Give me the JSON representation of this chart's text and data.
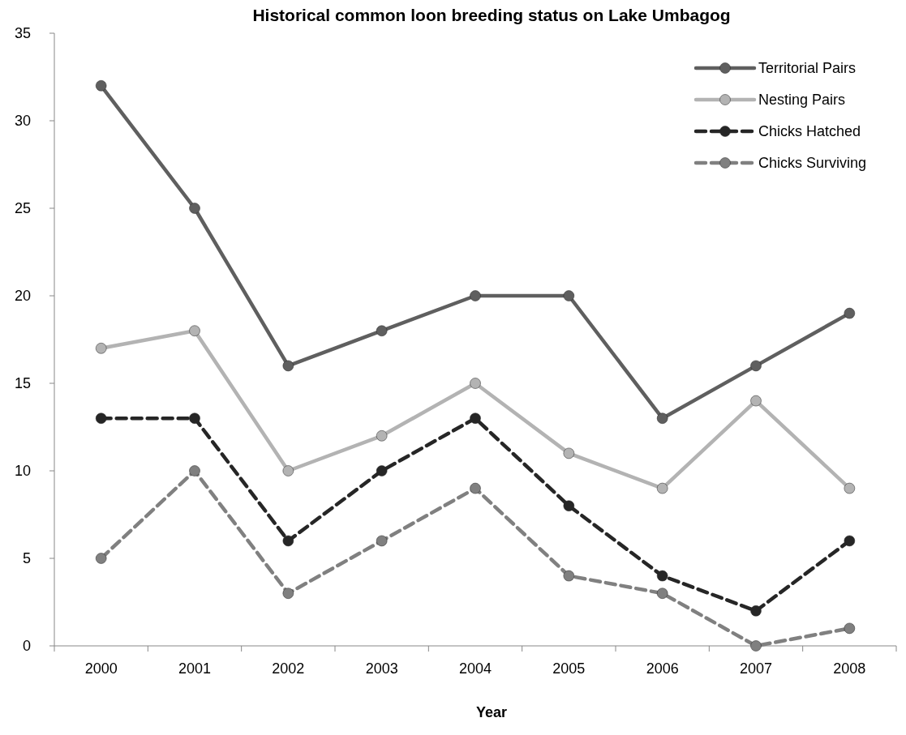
{
  "chart_data": {
    "type": "line",
    "title": "Historical common loon breeding status on Lake Umbagog",
    "xlabel": "Year",
    "categories": [
      "2000",
      "2001",
      "2002",
      "2003",
      "2004",
      "2005",
      "2006",
      "2007",
      "2008"
    ],
    "series": [
      {
        "name": "Territorial Pairs",
        "color": "#5f5f5f",
        "line_style": "solid",
        "values": [
          32,
          25,
          16,
          18,
          20,
          20,
          13,
          16,
          19
        ]
      },
      {
        "name": "Nesting Pairs",
        "color": "#b3b3b3",
        "line_style": "solid",
        "values": [
          17,
          18,
          10,
          12,
          15,
          11,
          9,
          14,
          9
        ]
      },
      {
        "name": "Chicks Hatched",
        "color": "#262626",
        "line_style": "dashed",
        "values": [
          13,
          13,
          6,
          10,
          13,
          8,
          4,
          2,
          6
        ]
      },
      {
        "name": "Chicks Surviving",
        "color": "#808080",
        "line_style": "dashed",
        "values": [
          5,
          10,
          3,
          6,
          9,
          4,
          3,
          0,
          1
        ]
      }
    ],
    "ylim": [
      0,
      35
    ],
    "yticks": [
      0,
      5,
      10,
      15,
      20,
      25,
      30,
      35
    ],
    "grid": false,
    "legend": "top right",
    "marker": "circle"
  }
}
